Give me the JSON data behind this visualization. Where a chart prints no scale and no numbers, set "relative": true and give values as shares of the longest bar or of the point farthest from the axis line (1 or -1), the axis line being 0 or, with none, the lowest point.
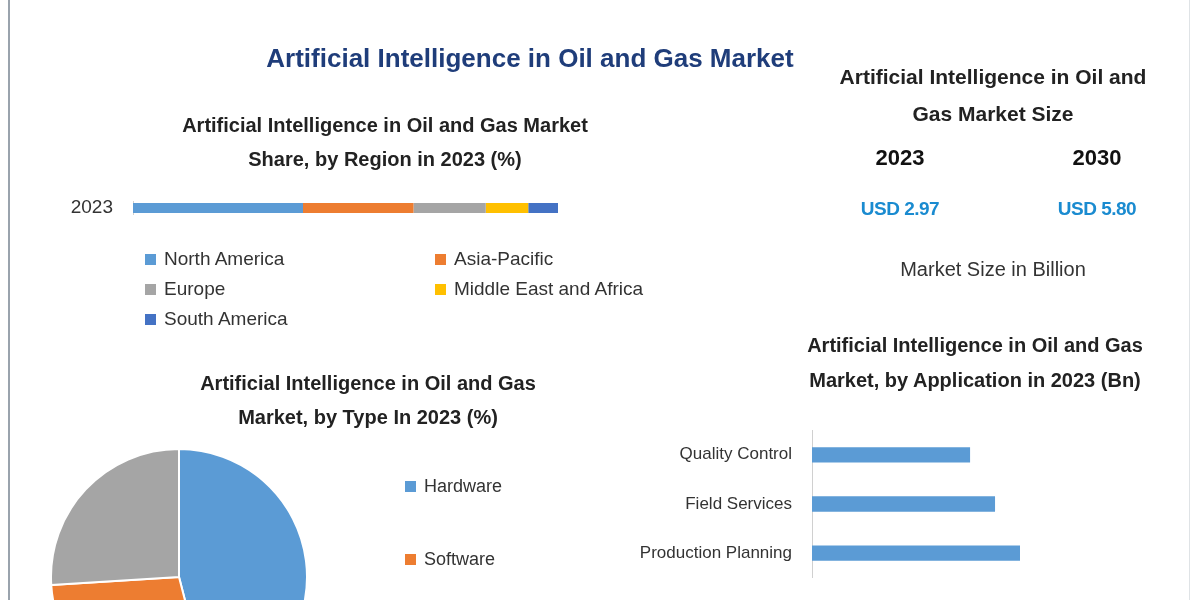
{
  "chart_data": [
    {
      "type": "other",
      "title": "Artificial Intelligence in Oil and Gas Market"
    },
    {
      "type": "bar",
      "title": "Artificial Intelligence in Oil and Gas Market Share, by Region in 2023 (%)",
      "orientation": "horizontal",
      "stacked": true,
      "relative": true,
      "legend": "bottom",
      "categories": [
        "2023"
      ],
      "series": [
        {
          "name": "North America",
          "color": "#5b9bd5",
          "values": [
            0.4
          ]
        },
        {
          "name": "Asia-Pacific",
          "color": "#ed7d31",
          "values": [
            0.26
          ]
        },
        {
          "name": "Europe",
          "color": "#a5a5a5",
          "values": [
            0.17
          ]
        },
        {
          "name": "Middle East and Africa",
          "color": "#ffc000",
          "values": [
            0.1
          ]
        },
        {
          "name": "South America",
          "color": "#4472c4",
          "values": [
            0.07
          ]
        }
      ]
    },
    {
      "type": "other",
      "title": "Artificial Intelligence in Oil and Gas Market Size",
      "categories": [
        "2023",
        "2030"
      ],
      "annotations": [
        "USD 2.97",
        "USD 5.80",
        "Market Size in Billion"
      ]
    },
    {
      "type": "pie",
      "title": "Artificial Intelligence in Oil and Gas Market, by Type In 2023 (%)",
      "legend": "right",
      "categories": [
        "Hardware",
        "Software",
        null
      ],
      "values": [
        46,
        28,
        26
      ],
      "colors": [
        "#5b9bd5",
        "#ed7d31",
        "#a5a5a5"
      ]
    },
    {
      "type": "bar",
      "title": "Artificial Intelligence in Oil and Gas Market, by Application in 2023 (Bn)",
      "orientation": "horizontal",
      "relative": true,
      "categories": [
        "Quality Control",
        "Field Services",
        "Production Planning"
      ],
      "values": [
        0.76,
        0.88,
        1
      ],
      "color": "#5b9bd5"
    }
  ]
}
